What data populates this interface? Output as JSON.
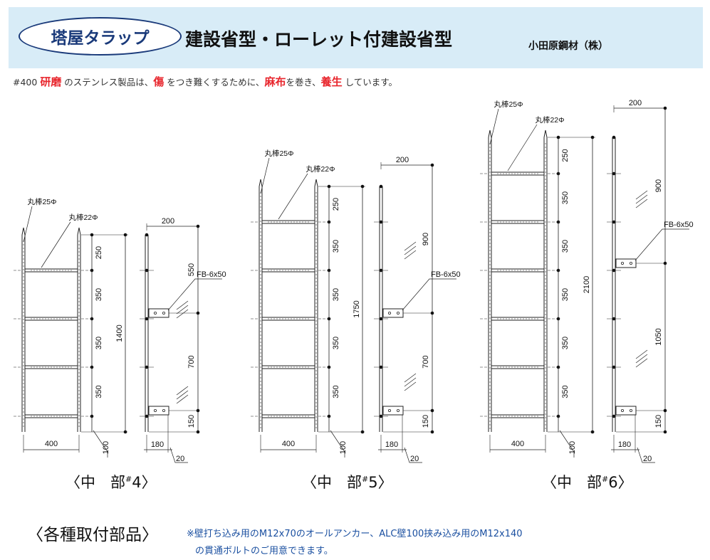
{
  "header": {
    "badge": "塔屋タラップ",
    "title": "建設省型・ローレット付建設省型",
    "company": "小田原鋼材（株）"
  },
  "note": {
    "p1": "#400 ",
    "r1": "研磨",
    "p2": " のステンレス製品は、",
    "r2": "傷",
    "p3": " をつき難くするために、",
    "r3": "麻布",
    "p4": "を巻き、",
    "r4": "養生",
    "p5": " しています。"
  },
  "labels": {
    "rod25": "丸棒25Φ",
    "rod22": "丸棒22Φ",
    "fb": "FB-6x50"
  },
  "ladders": [
    {
      "caption_pre": "〈中　部",
      "caption_mark": "#",
      "caption_num": "4",
      "caption_post": "〉",
      "rung_spacings": [
        "250",
        "350",
        "350",
        "350"
      ],
      "total": "1400",
      "width": "400",
      "bottom": "100",
      "side_top": "200",
      "side_dims": [
        "550",
        "700",
        "150"
      ],
      "side_bottom": "180",
      "side_gap": "20"
    },
    {
      "caption_pre": "〈中　部",
      "caption_mark": "#",
      "caption_num": "5",
      "caption_post": "〉",
      "rung_spacings": [
        "250",
        "350",
        "350",
        "350",
        "350"
      ],
      "total": "1750",
      "width": "400",
      "bottom": "100",
      "side_top": "200",
      "side_dims": [
        "900",
        "700",
        "150"
      ],
      "side_bottom": "180",
      "side_gap": "20"
    },
    {
      "caption_pre": "〈中　部",
      "caption_mark": "#",
      "caption_num": "6",
      "caption_post": "〉",
      "rung_spacings": [
        "250",
        "350",
        "350",
        "350",
        "350",
        "350"
      ],
      "total": "2100",
      "width": "400",
      "bottom": "100",
      "side_top": "200",
      "side_dims": [
        "900",
        "1050",
        "150"
      ],
      "side_bottom": "180",
      "side_gap": "20"
    }
  ],
  "parts": {
    "title": "〈各種取付部品〉",
    "line1": "※壁打ち込み用のM12x70のオールアンカー、ALC壁100挟み込み用のM12x140",
    "line2": "の貫通ボルトのご用意できます。"
  }
}
